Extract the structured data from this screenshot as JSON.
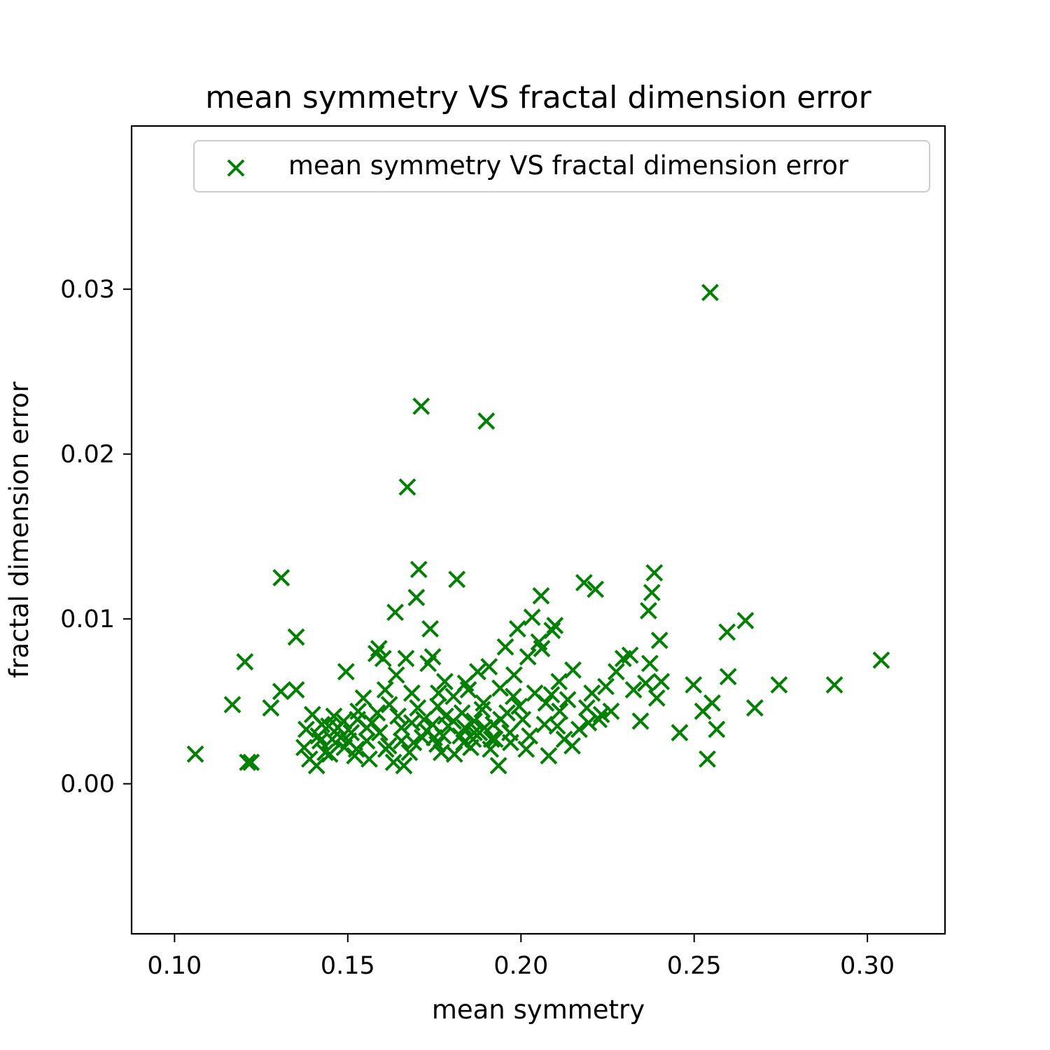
{
  "chart_data": {
    "type": "scatter",
    "title": "mean symmetry VS fractal dimension error",
    "xlabel": "mean symmetry",
    "ylabel": "fractal dimension error",
    "xlim": [
      0.0876,
      0.3224
    ],
    "ylim": [
      -0.0091,
      0.0399
    ],
    "xticks": [
      0.1,
      0.15,
      0.2,
      0.25,
      0.3
    ],
    "xtick_labels": [
      "0.10",
      "0.15",
      "0.20",
      "0.25",
      "0.30"
    ],
    "yticks": [
      0.0,
      0.01,
      0.02,
      0.03
    ],
    "ytick_labels": [
      "0.00",
      "0.01",
      "0.02",
      "0.03"
    ],
    "grid": false,
    "legend_position": "top-right",
    "marker": "x",
    "color": "#008000",
    "series": [
      {
        "name": "mean symmetry VS fractal dimension error",
        "points": [
          [
            0.106,
            0.0018
          ],
          [
            0.1211,
            0.0013
          ],
          [
            0.1221,
            0.0013
          ],
          [
            0.1167,
            0.0048
          ],
          [
            0.1203,
            0.0074
          ],
          [
            0.1278,
            0.0046
          ],
          [
            0.1307,
            0.0056
          ],
          [
            0.1351,
            0.0057
          ],
          [
            0.1308,
            0.0125
          ],
          [
            0.1351,
            0.0089
          ],
          [
            0.1374,
            0.0022
          ],
          [
            0.138,
            0.0033
          ],
          [
            0.139,
            0.0015
          ],
          [
            0.141,
            0.0011
          ],
          [
            0.142,
            0.0026
          ],
          [
            0.1435,
            0.0019
          ],
          [
            0.1445,
            0.0035
          ],
          [
            0.146,
            0.0041
          ],
          [
            0.148,
            0.0028
          ],
          [
            0.149,
            0.0022
          ],
          [
            0.1495,
            0.0068
          ],
          [
            0.151,
            0.0031
          ],
          [
            0.152,
            0.0017
          ],
          [
            0.153,
            0.0044
          ],
          [
            0.1545,
            0.0052
          ],
          [
            0.1555,
            0.0026
          ],
          [
            0.157,
            0.0037
          ],
          [
            0.1582,
            0.0079
          ],
          [
            0.159,
            0.0082
          ],
          [
            0.1602,
            0.0076
          ],
          [
            0.161,
            0.0021
          ],
          [
            0.162,
            0.0048
          ],
          [
            0.1632,
            0.0013
          ],
          [
            0.1637,
            0.0104
          ],
          [
            0.164,
            0.0066
          ],
          [
            0.1655,
            0.0034
          ],
          [
            0.1662,
            0.0011
          ],
          [
            0.1668,
            0.0076
          ],
          [
            0.1672,
            0.018
          ],
          [
            0.1685,
            0.0055
          ],
          [
            0.169,
            0.0025
          ],
          [
            0.1698,
            0.0113
          ],
          [
            0.1705,
            0.013
          ],
          [
            0.1712,
            0.0229
          ],
          [
            0.172,
            0.0039
          ],
          [
            0.1732,
            0.0073
          ],
          [
            0.1738,
            0.0094
          ],
          [
            0.1745,
            0.0077
          ],
          [
            0.175,
            0.0028
          ],
          [
            0.176,
            0.0047
          ],
          [
            0.177,
            0.0019
          ],
          [
            0.178,
            0.0062
          ],
          [
            0.179,
            0.0035
          ],
          [
            0.1805,
            0.0053
          ],
          [
            0.1815,
            0.0124
          ],
          [
            0.1825,
            0.0029
          ],
          [
            0.183,
            0.0043
          ],
          [
            0.184,
            0.0061
          ],
          [
            0.1855,
            0.0022
          ],
          [
            0.1865,
            0.0038
          ],
          [
            0.1875,
            0.0068
          ],
          [
            0.188,
            0.0031
          ],
          [
            0.1892,
            0.0049
          ],
          [
            0.19,
            0.022
          ],
          [
            0.1908,
            0.0071
          ],
          [
            0.1915,
            0.0027
          ],
          [
            0.192,
            0.0036
          ],
          [
            0.1935,
            0.0011
          ],
          [
            0.194,
            0.0058
          ],
          [
            0.1955,
            0.0083
          ],
          [
            0.196,
            0.0043
          ],
          [
            0.197,
            0.0025
          ],
          [
            0.198,
            0.0066
          ],
          [
            0.199,
            0.0094
          ],
          [
            0.2005,
            0.0039
          ],
          [
            0.2015,
            0.0021
          ],
          [
            0.202,
            0.0077
          ],
          [
            0.2032,
            0.0101
          ],
          [
            0.204,
            0.0055
          ],
          [
            0.2052,
            0.0086
          ],
          [
            0.2058,
            0.0114
          ],
          [
            0.206,
            0.0082
          ],
          [
            0.2072,
            0.0049
          ],
          [
            0.208,
            0.0017
          ],
          [
            0.209,
            0.0093
          ],
          [
            0.2098,
            0.0096
          ],
          [
            0.2105,
            0.0035
          ],
          [
            0.211,
            0.0062
          ],
          [
            0.2125,
            0.0027
          ],
          [
            0.2135,
            0.0051
          ],
          [
            0.215,
            0.0069
          ],
          [
            0.2168,
            0.0033
          ],
          [
            0.2182,
            0.0122
          ],
          [
            0.219,
            0.0046
          ],
          [
            0.2205,
            0.0055
          ],
          [
            0.2215,
            0.0118
          ],
          [
            0.2225,
            0.0039
          ],
          [
            0.2245,
            0.0059
          ],
          [
            0.226,
            0.0044
          ],
          [
            0.2275,
            0.0068
          ],
          [
            0.2295,
            0.0076
          ],
          [
            0.2315,
            0.0078
          ],
          [
            0.2325,
            0.0057
          ],
          [
            0.2345,
            0.0038
          ],
          [
            0.236,
            0.0061
          ],
          [
            0.2368,
            0.0105
          ],
          [
            0.2372,
            0.0073
          ],
          [
            0.2378,
            0.0116
          ],
          [
            0.2385,
            0.0128
          ],
          [
            0.2392,
            0.0052
          ],
          [
            0.24,
            0.0087
          ],
          [
            0.2405,
            0.0062
          ],
          [
            0.2458,
            0.0031
          ],
          [
            0.2498,
            0.006
          ],
          [
            0.2525,
            0.0044
          ],
          [
            0.2538,
            0.0015
          ],
          [
            0.2546,
            0.0298
          ],
          [
            0.2552,
            0.0049
          ],
          [
            0.2565,
            0.0033
          ],
          [
            0.2595,
            0.0092
          ],
          [
            0.2598,
            0.0065
          ],
          [
            0.2648,
            0.0099
          ],
          [
            0.2675,
            0.0046
          ],
          [
            0.2745,
            0.006
          ],
          [
            0.2905,
            0.006
          ],
          [
            0.304,
            0.0075
          ],
          [
            0.1398,
            0.0042
          ],
          [
            0.1415,
            0.0029
          ],
          [
            0.1448,
            0.0018
          ],
          [
            0.1472,
            0.0034
          ],
          [
            0.1502,
            0.0026
          ],
          [
            0.1528,
            0.0039
          ],
          [
            0.1562,
            0.0015
          ],
          [
            0.1592,
            0.0031
          ],
          [
            0.1618,
            0.0023
          ],
          [
            0.1645,
            0.0041
          ],
          [
            0.1678,
            0.0019
          ],
          [
            0.1702,
            0.0046
          ],
          [
            0.1728,
            0.0032
          ],
          [
            0.1758,
            0.0024
          ],
          [
            0.1782,
            0.0041
          ],
          [
            0.1808,
            0.0018
          ],
          [
            0.1838,
            0.0034
          ],
          [
            0.1862,
            0.0027
          ],
          [
            0.1888,
            0.0045
          ],
          [
            0.1912,
            0.0021
          ],
          [
            0.1942,
            0.0039
          ],
          [
            0.1968,
            0.0031
          ],
          [
            0.1995,
            0.0047
          ],
          [
            0.2025,
            0.0029
          ],
          [
            0.2068,
            0.0036
          ],
          [
            0.2112,
            0.0044
          ],
          [
            0.2148,
            0.0023
          ],
          [
            0.2195,
            0.0037
          ],
          [
            0.2232,
            0.0042
          ],
          [
            0.1655,
            0.0026
          ],
          [
            0.1685,
            0.0037
          ],
          [
            0.1715,
            0.0028
          ],
          [
            0.1745,
            0.0036
          ],
          [
            0.1775,
            0.0029
          ],
          [
            0.1805,
            0.0038
          ],
          [
            0.1835,
            0.0025
          ],
          [
            0.1865,
            0.0031
          ],
          [
            0.1895,
            0.0034
          ],
          [
            0.1925,
            0.0027
          ],
          [
            0.1585,
            0.0043
          ],
          [
            0.1555,
            0.0034
          ],
          [
            0.1525,
            0.0021
          ],
          [
            0.1488,
            0.0038
          ],
          [
            0.1455,
            0.0027
          ],
          [
            0.1425,
            0.0036
          ],
          [
            0.1608,
            0.0057
          ],
          [
            0.1762,
            0.0055
          ],
          [
            0.1848,
            0.0057
          ],
          [
            0.1978,
            0.0053
          ],
          [
            0.2088,
            0.0054
          ]
        ]
      }
    ]
  }
}
